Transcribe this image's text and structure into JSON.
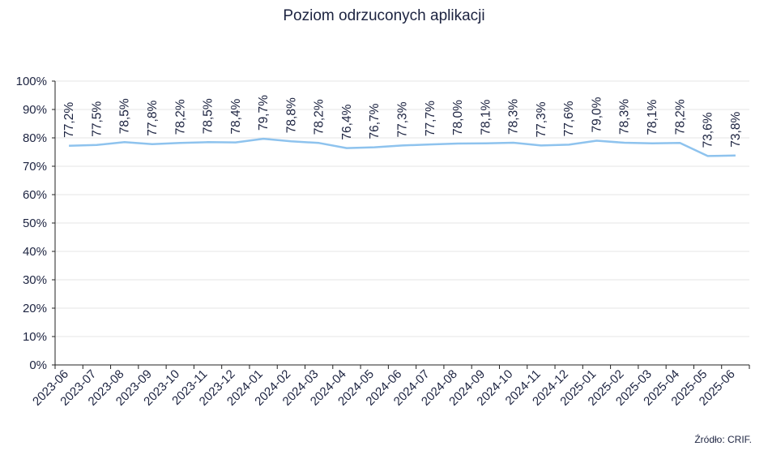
{
  "chart_data": {
    "type": "line",
    "title": "Poziom odrzuconych aplikacji",
    "source": "Źródło: CRIF.",
    "categories": [
      "2023-06",
      "2023-07",
      "2023-08",
      "2023-09",
      "2023-10",
      "2023-11",
      "2023-12",
      "2024-01",
      "2024-02",
      "2024-03",
      "2024-04",
      "2024-05",
      "2024-06",
      "2024-07",
      "2024-08",
      "2024-09",
      "2024-10",
      "2024-11",
      "2024-12",
      "2025-01",
      "2025-02",
      "2025-03",
      "2025-04",
      "2025-05",
      "2025-06"
    ],
    "series": [
      {
        "values": [
          77.2,
          77.5,
          78.5,
          77.8,
          78.2,
          78.5,
          78.4,
          79.7,
          78.8,
          78.2,
          76.4,
          76.7,
          77.3,
          77.7,
          78.0,
          78.1,
          78.3,
          77.3,
          77.6,
          79.0,
          78.3,
          78.1,
          78.2,
          73.6,
          73.8
        ],
        "labels": [
          "77,2%",
          "77,5%",
          "78,5%",
          "77,8%",
          "78,2%",
          "78,5%",
          "78,4%",
          "79,7%",
          "78,8%",
          "78,2%",
          "76,4%",
          "76,7%",
          "77,3%",
          "77,7%",
          "78,0%",
          "78,1%",
          "78,3%",
          "77,3%",
          "77,6%",
          "79,0%",
          "78,3%",
          "78,1%",
          "78,2%",
          "73,6%",
          "73,8%"
        ],
        "color": "#8ec3ee"
      }
    ],
    "ylim": [
      0,
      100
    ],
    "yticks": [
      0,
      10,
      20,
      30,
      40,
      50,
      60,
      70,
      80,
      90,
      100
    ],
    "ytick_labels": [
      "0%",
      "10%",
      "20%",
      "30%",
      "40%",
      "50%",
      "60%",
      "70%",
      "80%",
      "90%",
      "100%"
    ],
    "grid": true,
    "colors": {
      "grid": "#e6e6e6",
      "axis": "#222222",
      "text": "#1c2340"
    }
  }
}
